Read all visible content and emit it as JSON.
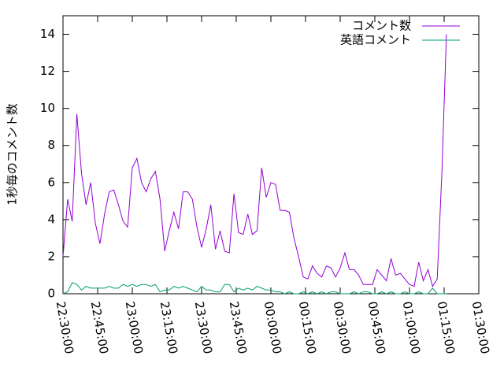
{
  "chart_data": {
    "type": "line",
    "ylabel": "1秒毎のコメント数",
    "x": [
      "22:30:00",
      "22:32:00",
      "22:34:00",
      "22:36:00",
      "22:38:00",
      "22:40:00",
      "22:42:00",
      "22:44:00",
      "22:46:00",
      "22:48:00",
      "22:50:00",
      "22:52:00",
      "22:54:00",
      "22:56:00",
      "22:58:00",
      "23:00:00",
      "23:02:00",
      "23:04:00",
      "23:06:00",
      "23:08:00",
      "23:10:00",
      "23:12:00",
      "23:14:00",
      "23:16:00",
      "23:18:00",
      "23:20:00",
      "23:22:00",
      "23:24:00",
      "23:26:00",
      "23:28:00",
      "23:30:00",
      "23:32:00",
      "23:34:00",
      "23:36:00",
      "23:38:00",
      "23:40:00",
      "23:42:00",
      "23:44:00",
      "23:46:00",
      "23:48:00",
      "23:50:00",
      "23:52:00",
      "23:54:00",
      "23:56:00",
      "23:58:00",
      "00:00:00",
      "00:02:00",
      "00:04:00",
      "00:06:00",
      "00:08:00",
      "00:10:00",
      "00:12:00",
      "00:14:00",
      "00:16:00",
      "00:18:00",
      "00:20:00",
      "00:22:00",
      "00:24:00",
      "00:26:00",
      "00:28:00",
      "00:30:00",
      "00:32:00",
      "00:34:00",
      "00:36:00",
      "00:38:00",
      "00:40:00",
      "00:42:00",
      "00:44:00",
      "00:46:00",
      "00:48:00",
      "00:50:00",
      "00:52:00",
      "00:54:00",
      "00:56:00",
      "00:58:00",
      "01:00:00",
      "01:02:00",
      "01:04:00",
      "01:06:00",
      "01:08:00",
      "01:10:00",
      "01:12:00",
      "01:14:00",
      "01:16:00"
    ],
    "series": [
      {
        "name": "コメント数",
        "color": "#9400d3",
        "values": [
          2.0,
          5.1,
          3.9,
          9.7,
          6.5,
          4.8,
          6.0,
          3.8,
          2.7,
          4.3,
          5.5,
          5.6,
          4.8,
          3.9,
          3.6,
          6.8,
          7.3,
          6.0,
          5.5,
          6.2,
          6.6,
          5.1,
          2.3,
          3.4,
          4.4,
          3.5,
          5.5,
          5.5,
          5.1,
          3.6,
          2.5,
          3.5,
          4.8,
          2.4,
          3.4,
          2.3,
          2.2,
          5.4,
          3.3,
          3.2,
          4.3,
          3.2,
          3.4,
          6.8,
          5.2,
          6.0,
          5.9,
          4.5,
          4.5,
          4.4,
          3.0,
          2.0,
          0.9,
          0.8,
          1.5,
          1.1,
          0.9,
          1.5,
          1.4,
          0.9,
          1.4,
          2.2,
          1.3,
          1.3,
          1.0,
          0.5,
          0.5,
          0.5,
          1.3,
          1.0,
          0.7,
          1.9,
          1.0,
          1.1,
          0.8,
          0.5,
          0.4,
          1.7,
          0.7,
          1.3,
          0.4,
          0.8,
          6.5,
          14.0
        ]
      },
      {
        "name": "英語コメント",
        "color": "#009e73",
        "values": [
          0.0,
          0.1,
          0.6,
          0.5,
          0.2,
          0.4,
          0.3,
          0.3,
          0.3,
          0.3,
          0.4,
          0.3,
          0.3,
          0.5,
          0.4,
          0.5,
          0.4,
          0.5,
          0.5,
          0.4,
          0.5,
          0.1,
          0.2,
          0.2,
          0.4,
          0.3,
          0.4,
          0.3,
          0.2,
          0.1,
          0.4,
          0.2,
          0.2,
          0.1,
          0.1,
          0.5,
          0.5,
          0.1,
          0.3,
          0.2,
          0.3,
          0.2,
          0.4,
          0.3,
          0.2,
          0.2,
          0.1,
          0.1,
          0.0,
          0.1,
          0,
          0,
          0.1,
          0,
          0.1,
          0,
          0.1,
          0,
          0.1,
          0.1,
          0,
          0,
          0,
          0.1,
          0,
          0.1,
          0.1,
          0,
          0,
          0.1,
          0,
          0.1,
          0,
          0,
          0.1,
          0,
          0,
          0.1,
          0,
          0,
          0.3,
          0,
          0,
          0
        ]
      }
    ],
    "xlim": [
      "22:30:00",
      "01:30:00"
    ],
    "xticks": [
      "22:30:00",
      "22:45:00",
      "23:00:00",
      "23:15:00",
      "23:30:00",
      "23:45:00",
      "00:00:00",
      "00:15:00",
      "00:30:00",
      "00:45:00",
      "01:00:00",
      "01:15:00",
      "01:30:00"
    ],
    "ylim": [
      0,
      15
    ],
    "yticks": [
      0,
      2,
      4,
      6,
      8,
      10,
      12,
      14
    ],
    "legend": "upper right"
  }
}
